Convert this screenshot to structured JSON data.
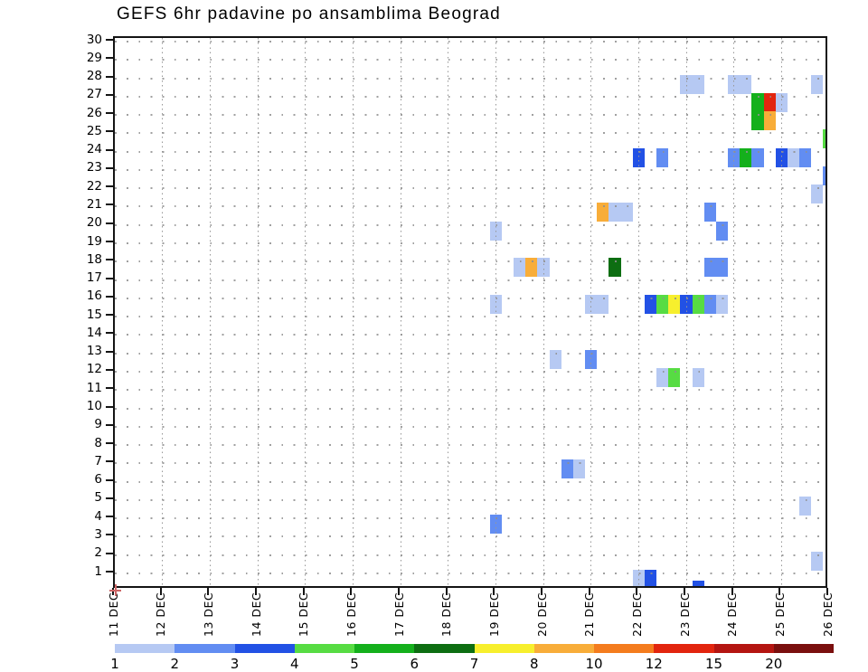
{
  "title": "GEFS 6hr padavine po ansamblima Beograd",
  "chart_data": {
    "type": "heatmap",
    "title": "GEFS 6hr padavine po ansamblima Beograd",
    "x_axis": {
      "tick_labels": [
        "11 DEC",
        "12 DEC",
        "13 DEC",
        "14 DEC",
        "15 DEC",
        "16 DEC",
        "17 DEC",
        "18 DEC",
        "19 DEC",
        "20 DEC",
        "21 DEC",
        "22 DEC",
        "23 DEC",
        "24 DEC",
        "25 DEC",
        "26 DEC"
      ],
      "period_hours": 6
    },
    "y_axis": {
      "description": "ensemble member",
      "min": 1,
      "max": 30,
      "tick_step": 1
    },
    "grid": "dotted",
    "legend": {
      "position": "bottom",
      "boundary_labels": [
        "1",
        "2",
        "3",
        "4",
        "5",
        "6",
        "7",
        "8",
        "10",
        "12",
        "15",
        "20"
      ],
      "order": [
        "c1",
        "c2",
        "c3",
        "c4",
        "c5",
        "c6",
        "c7",
        "c8",
        "c9",
        "c10",
        "c11",
        "c12"
      ],
      "colors": {
        "c1": "#b6c9f3",
        "c2": "#628df2",
        "c3": "#2251e5",
        "c4": "#57dc43",
        "c5": "#14b01c",
        "c6": "#0d6e12",
        "c7": "#f7ef2d",
        "c8": "#f8ad39",
        "c9": "#f47c1e",
        "c10": "#e2250e",
        "c11": "#b41511",
        "c12": "#7a0f0e"
      }
    },
    "origin_marker_color": "#cc6666",
    "cells": [
      {
        "member": 28,
        "day": 23,
        "hour": 0,
        "color": "c1",
        "span": 2
      },
      {
        "member": 28,
        "day": 24,
        "hour": 0,
        "color": "c1",
        "span": 2
      },
      {
        "member": 28,
        "day": 25,
        "hour": 18,
        "color": "c1",
        "span": 1
      },
      {
        "member": 27,
        "day": 24,
        "hour": 12,
        "color": "c5",
        "span": 1
      },
      {
        "member": 27,
        "day": 24,
        "hour": 18,
        "color": "c10",
        "span": 1
      },
      {
        "member": 27,
        "day": 25,
        "hour": 0,
        "color": "c1",
        "span": 1
      },
      {
        "member": 26,
        "day": 24,
        "hour": 12,
        "color": "c5",
        "span": 1
      },
      {
        "member": 26,
        "day": 24,
        "hour": 18,
        "color": "c8",
        "span": 1
      },
      {
        "member": 25,
        "day": 26,
        "hour": 0,
        "color": "c4",
        "span": 1
      },
      {
        "member": 24,
        "day": 22,
        "hour": 0,
        "color": "c3",
        "span": 1
      },
      {
        "member": 24,
        "day": 22,
        "hour": 12,
        "color": "c2",
        "span": 1
      },
      {
        "member": 24,
        "day": 24,
        "hour": 0,
        "color": "c2",
        "span": 1
      },
      {
        "member": 24,
        "day": 24,
        "hour": 6,
        "color": "c5",
        "span": 1
      },
      {
        "member": 24,
        "day": 24,
        "hour": 12,
        "color": "c2",
        "span": 1
      },
      {
        "member": 24,
        "day": 25,
        "hour": 0,
        "color": "c3",
        "span": 1
      },
      {
        "member": 24,
        "day": 25,
        "hour": 6,
        "color": "c1",
        "span": 1
      },
      {
        "member": 24,
        "day": 25,
        "hour": 12,
        "color": "c2",
        "span": 1
      },
      {
        "member": 23,
        "day": 26,
        "hour": 0,
        "color": "c2",
        "span": 1
      },
      {
        "member": 22,
        "day": 25,
        "hour": 18,
        "color": "c1",
        "span": 1
      },
      {
        "member": 21,
        "day": 21,
        "hour": 6,
        "color": "c8",
        "span": 1
      },
      {
        "member": 21,
        "day": 21,
        "hour": 12,
        "color": "c1",
        "span": 2
      },
      {
        "member": 21,
        "day": 23,
        "hour": 12,
        "color": "c2",
        "span": 1
      },
      {
        "member": 20,
        "day": 19,
        "hour": 0,
        "color": "c1",
        "span": 1
      },
      {
        "member": 20,
        "day": 23,
        "hour": 18,
        "color": "c2",
        "span": 1
      },
      {
        "member": 18,
        "day": 19,
        "hour": 12,
        "color": "c1",
        "span": 1
      },
      {
        "member": 18,
        "day": 19,
        "hour": 18,
        "color": "c8",
        "span": 1
      },
      {
        "member": 18,
        "day": 20,
        "hour": 0,
        "color": "c1",
        "span": 1
      },
      {
        "member": 18,
        "day": 21,
        "hour": 12,
        "color": "c6",
        "span": 1
      },
      {
        "member": 18,
        "day": 23,
        "hour": 12,
        "color": "c2",
        "span": 2
      },
      {
        "member": 16,
        "day": 19,
        "hour": 0,
        "color": "c1",
        "span": 1
      },
      {
        "member": 16,
        "day": 21,
        "hour": 0,
        "color": "c1",
        "span": 2
      },
      {
        "member": 16,
        "day": 22,
        "hour": 6,
        "color": "c3",
        "span": 1
      },
      {
        "member": 16,
        "day": 22,
        "hour": 12,
        "color": "c4",
        "span": 1
      },
      {
        "member": 16,
        "day": 22,
        "hour": 18,
        "color": "c7",
        "span": 1
      },
      {
        "member": 16,
        "day": 23,
        "hour": 0,
        "color": "c3",
        "span": 1
      },
      {
        "member": 16,
        "day": 23,
        "hour": 6,
        "color": "c4",
        "span": 1
      },
      {
        "member": 16,
        "day": 23,
        "hour": 12,
        "color": "c2",
        "span": 1
      },
      {
        "member": 16,
        "day": 23,
        "hour": 18,
        "color": "c1",
        "span": 1
      },
      {
        "member": 13,
        "day": 20,
        "hour": 6,
        "color": "c1",
        "span": 1
      },
      {
        "member": 13,
        "day": 21,
        "hour": 0,
        "color": "c2",
        "span": 1
      },
      {
        "member": 12,
        "day": 22,
        "hour": 12,
        "color": "c1",
        "span": 1
      },
      {
        "member": 12,
        "day": 22,
        "hour": 18,
        "color": "c4",
        "span": 1
      },
      {
        "member": 12,
        "day": 23,
        "hour": 6,
        "color": "c1",
        "span": 1
      },
      {
        "member": 7,
        "day": 20,
        "hour": 12,
        "color": "c2",
        "span": 1
      },
      {
        "member": 7,
        "day": 20,
        "hour": 18,
        "color": "c1",
        "span": 1
      },
      {
        "member": 5,
        "day": 25,
        "hour": 12,
        "color": "c1",
        "span": 1
      },
      {
        "member": 4,
        "day": 19,
        "hour": 0,
        "color": "c2",
        "span": 1
      },
      {
        "member": 2,
        "day": 25,
        "hour": 18,
        "color": "c1",
        "span": 1
      },
      {
        "member": 1,
        "day": 22,
        "hour": 0,
        "color": "c1",
        "span": 1
      },
      {
        "member": 1,
        "day": 22,
        "hour": 6,
        "color": "c3",
        "span": 1
      },
      {
        "member": 0,
        "day": 23,
        "hour": 6,
        "color": "c3",
        "span": 1
      }
    ]
  }
}
